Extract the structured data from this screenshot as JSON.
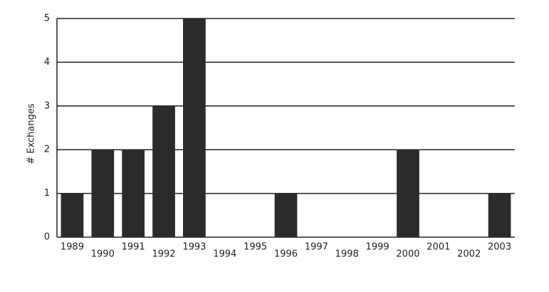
{
  "chart_data": {
    "type": "bar",
    "ylabel": "# Exchanges",
    "categories": [
      "1989",
      "1990",
      "1991",
      "1992",
      "1993",
      "1994",
      "1995",
      "1996",
      "1997",
      "1998",
      "1999",
      "2000",
      "2001",
      "2002",
      "2003"
    ],
    "values": [
      1,
      2,
      2,
      3,
      5,
      0,
      0,
      1,
      0,
      0,
      0,
      2,
      0,
      0,
      1
    ],
    "color": "#2b2b2b",
    "ylim": [
      0,
      5
    ],
    "yticks": [
      0,
      1,
      2,
      3,
      4,
      5
    ],
    "grid": true
  }
}
